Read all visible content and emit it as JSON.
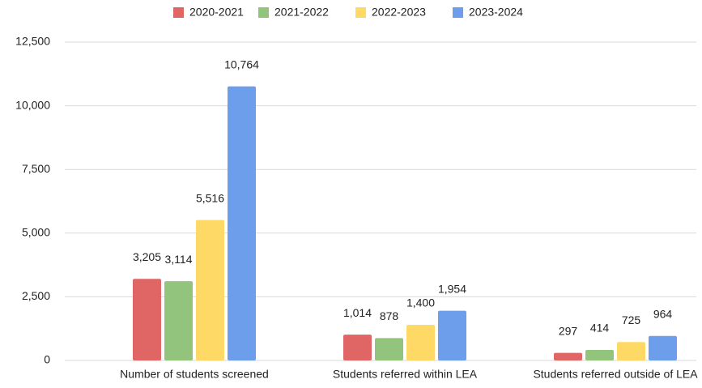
{
  "chart_data": {
    "type": "bar",
    "categories": [
      "Number of students screened",
      "Students referred within LEA",
      "Students referred outside of LEA"
    ],
    "series": [
      {
        "name": "2020-2021",
        "color": "#e06666",
        "values": [
          3205,
          1014,
          297
        ],
        "value_labels": [
          "3,205",
          "1,014",
          "297"
        ]
      },
      {
        "name": "2021-2022",
        "color": "#93c47d",
        "values": [
          3114,
          878,
          414
        ],
        "value_labels": [
          "3,114",
          "878",
          "414"
        ]
      },
      {
        "name": "2022-2023",
        "color": "#ffd966",
        "values": [
          5516,
          1400,
          725
        ],
        "value_labels": [
          "5,516",
          "1,400",
          "725"
        ]
      },
      {
        "name": "2023-2024",
        "color": "#6d9eeb",
        "values": [
          10764,
          1954,
          964
        ],
        "value_labels": [
          "10,764",
          "1,954",
          "964"
        ]
      }
    ],
    "ylim": [
      0,
      12500
    ],
    "yticks": [
      0,
      {
        "value": 2500,
        "label": "2,500"
      },
      {
        "value": 5000,
        "label": "5,000"
      },
      {
        "value": 7500,
        "label": "7,500"
      },
      {
        "value": 10000,
        "label": "10,000"
      },
      {
        "value": 12500,
        "label": "12,500"
      }
    ],
    "grid": true,
    "legend": "top"
  }
}
